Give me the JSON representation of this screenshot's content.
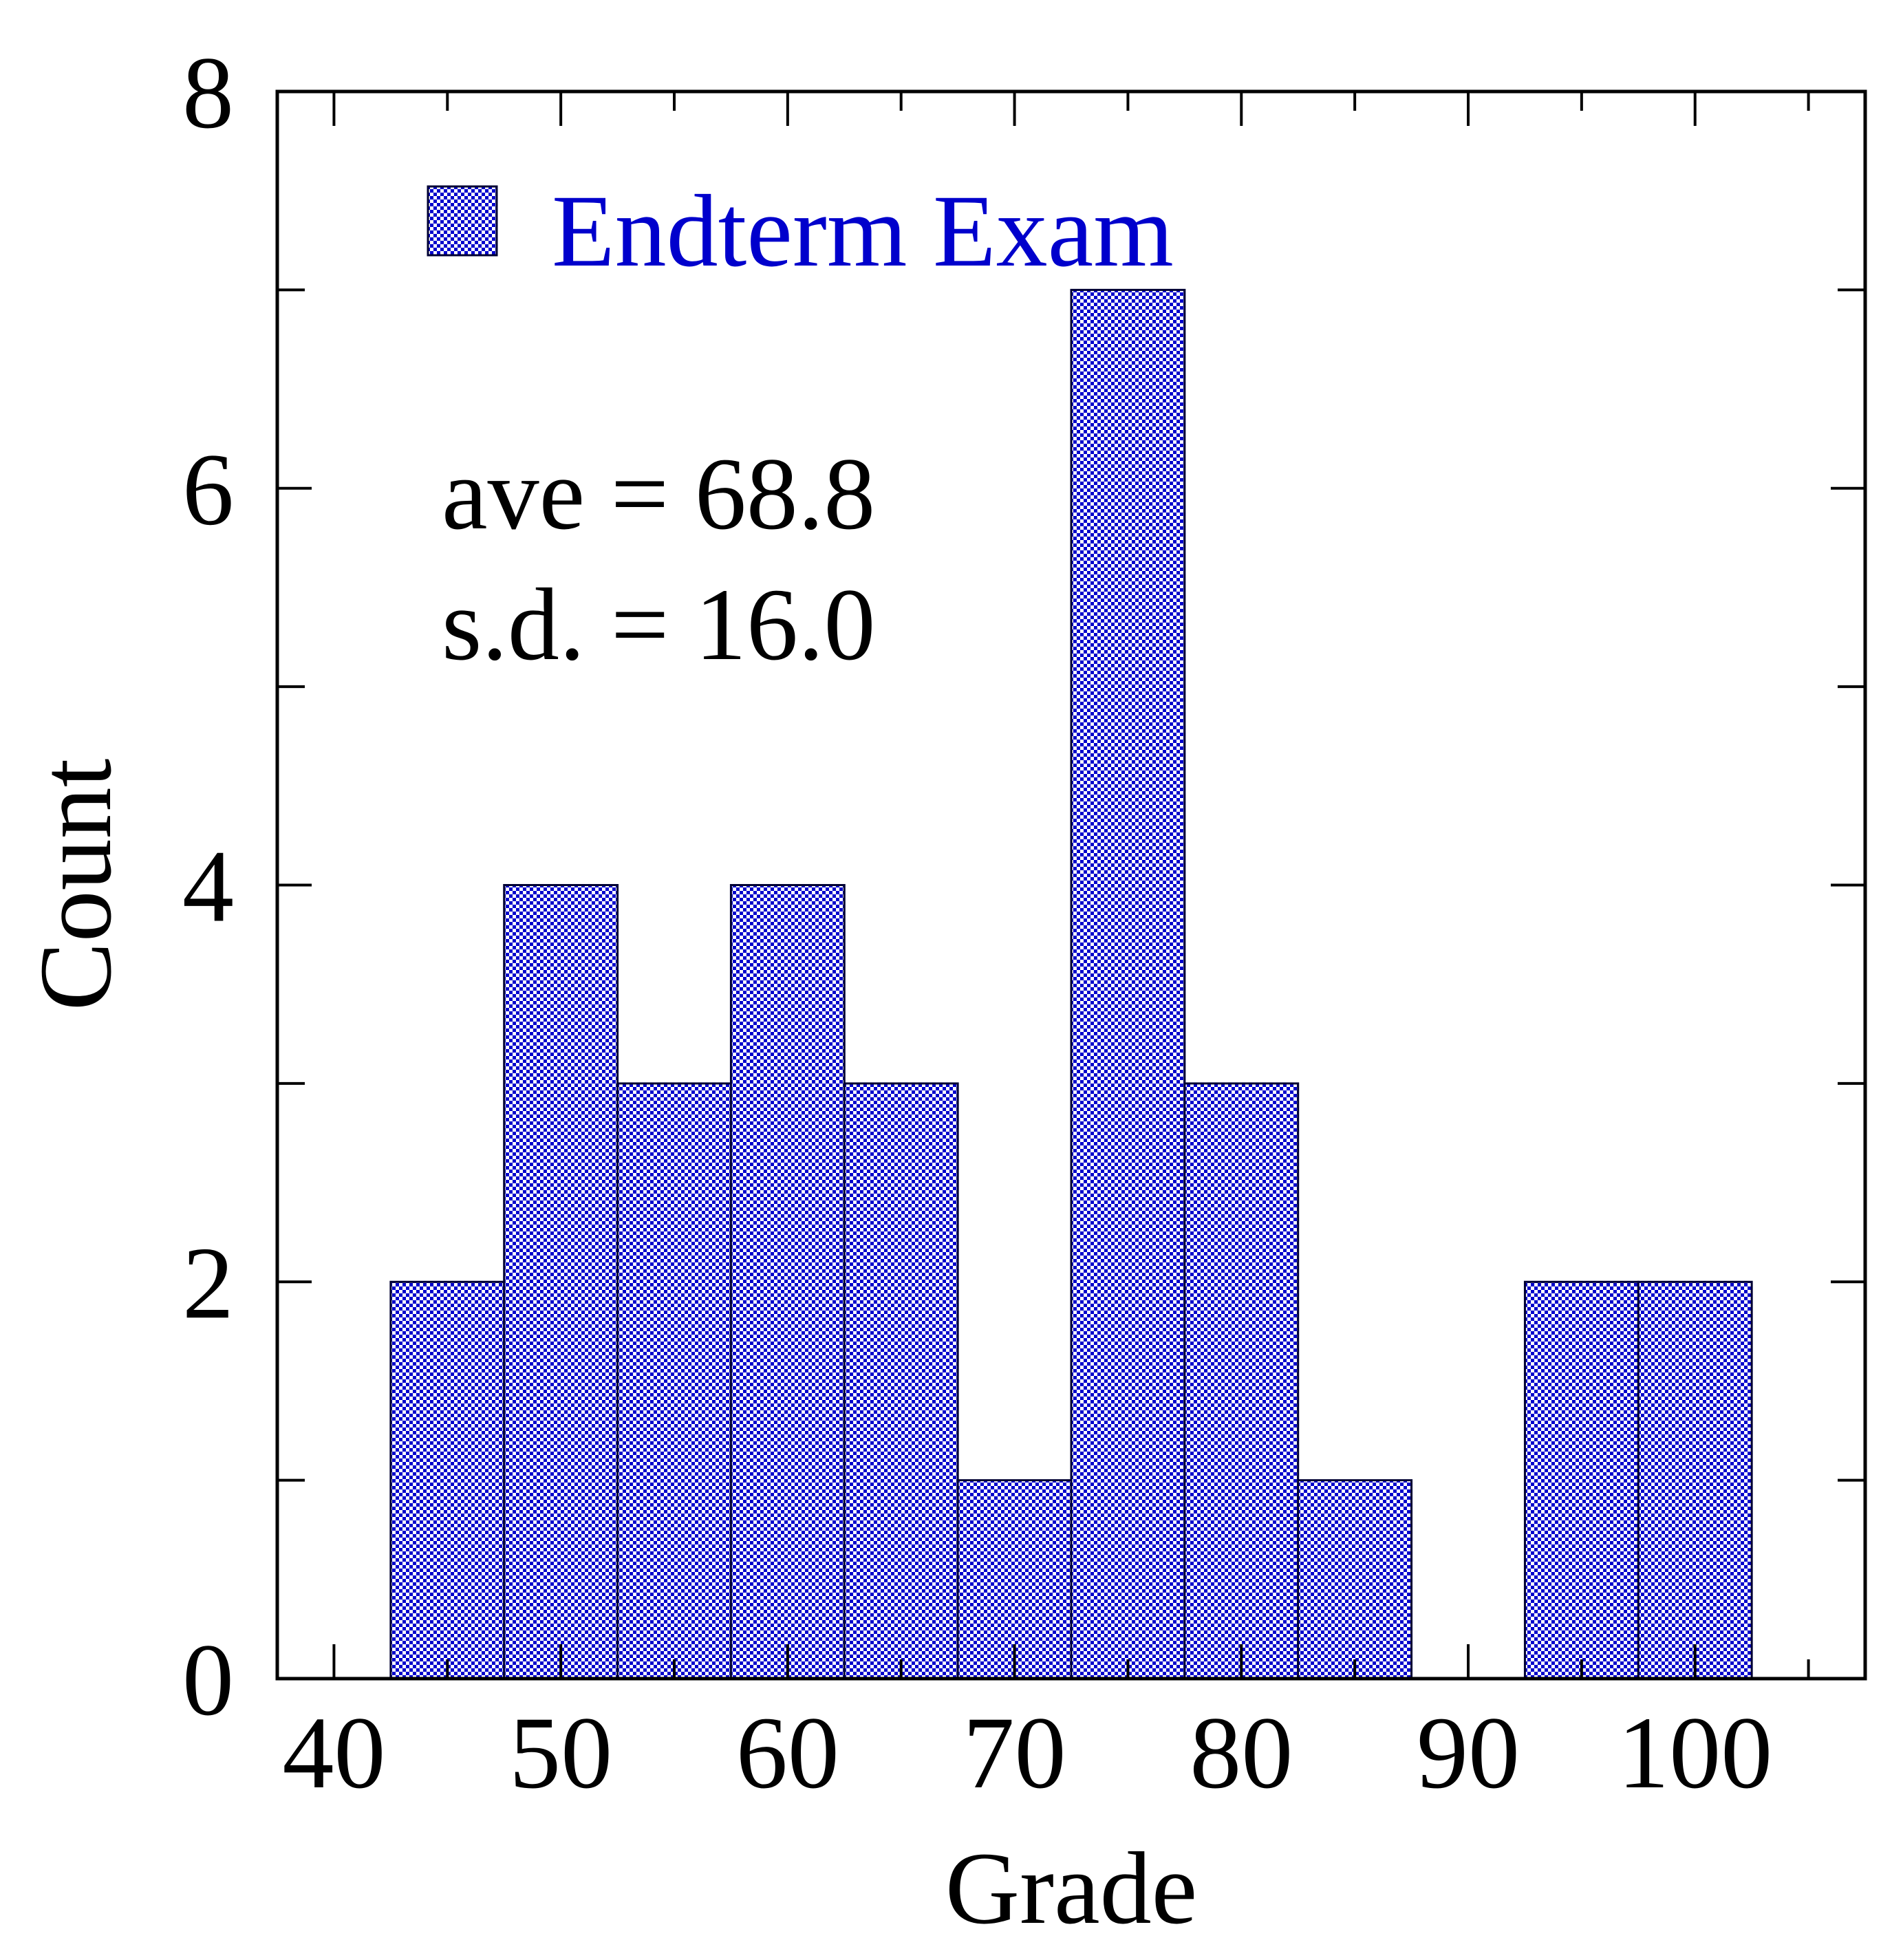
{
  "chart_data": {
    "type": "bar",
    "subtype": "histogram",
    "xlabel": "Grade",
    "ylabel": "Count",
    "xlim": [
      37.5,
      107.5
    ],
    "ylim": [
      0,
      8
    ],
    "xticks": [
      40,
      50,
      60,
      70,
      80,
      90,
      100
    ],
    "xtick_labels": [
      "40",
      "50",
      "60",
      "70",
      "80",
      "90",
      "100"
    ],
    "xminor_step": 5,
    "yticks": [
      0,
      2,
      4,
      6,
      8
    ],
    "ytick_labels": [
      "0",
      "2",
      "4",
      "6",
      "8"
    ],
    "yminor_step": 1,
    "grid": false,
    "legend": {
      "placement": "top-left",
      "label": "Endterm Exam"
    },
    "annotations": [
      "ave = 68.8",
      "s.d. = 16.0"
    ],
    "bin_width": 5,
    "bins": [
      {
        "from": 42.5,
        "to": 47.5,
        "count": 2
      },
      {
        "from": 47.5,
        "to": 52.5,
        "count": 4
      },
      {
        "from": 52.5,
        "to": 57.5,
        "count": 3
      },
      {
        "from": 57.5,
        "to": 62.5,
        "count": 4
      },
      {
        "from": 62.5,
        "to": 67.5,
        "count": 3
      },
      {
        "from": 67.5,
        "to": 72.5,
        "count": 1
      },
      {
        "from": 72.5,
        "to": 77.5,
        "count": 7
      },
      {
        "from": 77.5,
        "to": 82.5,
        "count": 3
      },
      {
        "from": 82.5,
        "to": 87.5,
        "count": 1
      },
      {
        "from": 92.5,
        "to": 97.5,
        "count": 2
      },
      {
        "from": 97.5,
        "to": 102.5,
        "count": 2
      }
    ],
    "colors": {
      "bar_fill": "#0000cc",
      "bar_edge": "#000033",
      "legend_text": "#0000cc",
      "axis": "#000000"
    }
  }
}
